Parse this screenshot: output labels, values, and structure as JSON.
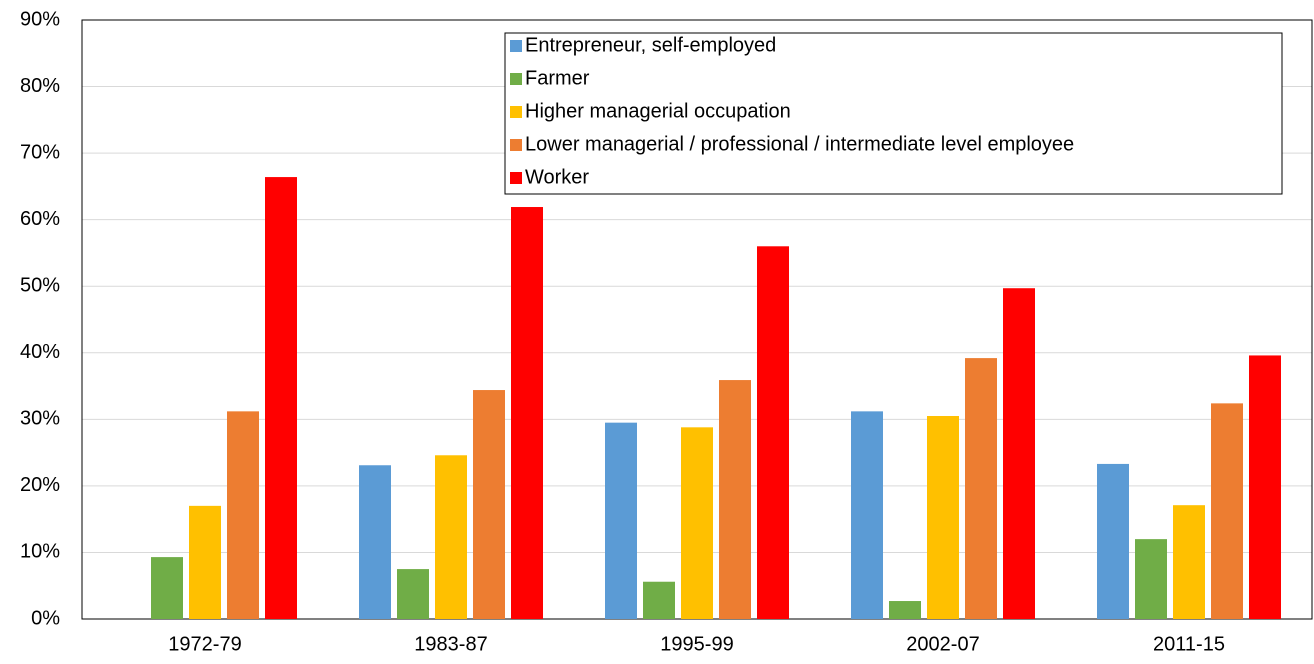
{
  "chart_data": {
    "type": "bar",
    "categories": [
      "1972-79",
      "1983-87",
      "1995-99",
      "2002-07",
      "2011-15"
    ],
    "series": [
      {
        "name": "Entrepreneur, self-employed",
        "color": "#5b9bd5",
        "values": [
          null,
          23.1,
          29.5,
          31.2,
          23.3
        ]
      },
      {
        "name": "Farmer",
        "color": "#70ad47",
        "values": [
          9.3,
          7.5,
          5.6,
          2.7,
          12.0
        ]
      },
      {
        "name": "Higher managerial occupation",
        "color": "#ffc000",
        "values": [
          17.0,
          24.6,
          28.8,
          30.5,
          17.1
        ]
      },
      {
        "name": "Lower managerial / professional / intermediate level employee",
        "color": "#ed7d31",
        "values": [
          31.2,
          34.4,
          35.9,
          39.2,
          32.4
        ]
      },
      {
        "name": "Worker",
        "color": "#ff0000",
        "values": [
          66.4,
          61.9,
          56.0,
          49.7,
          39.6
        ]
      }
    ],
    "ylim": [
      0,
      90
    ],
    "yticks": [
      {
        "value": 0,
        "label": "0%"
      },
      {
        "value": 10,
        "label": "10%"
      },
      {
        "value": 20,
        "label": "20%"
      },
      {
        "value": 30,
        "label": "30%"
      },
      {
        "value": 40,
        "label": "40%"
      },
      {
        "value": 50,
        "label": "50%"
      },
      {
        "value": 60,
        "label": "60%"
      },
      {
        "value": 70,
        "label": "70%"
      },
      {
        "value": 80,
        "label": "80%"
      },
      {
        "value": 90,
        "label": "90%"
      }
    ],
    "grid": true,
    "legend": "top-right"
  }
}
